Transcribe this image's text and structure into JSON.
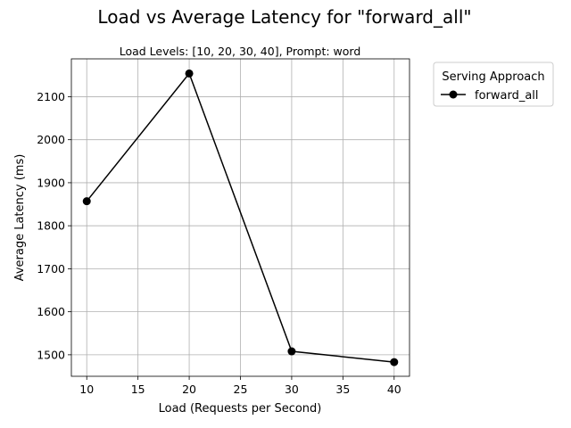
{
  "chart_data": {
    "type": "line",
    "title": "Load vs Average Latency for \"forward_all\"",
    "subtitle": "Load Levels: [10, 20, 30, 40], Prompt: word",
    "xlabel": "Load (Requests per Second)",
    "ylabel": "Average Latency (ms)",
    "x": [
      10,
      20,
      30,
      40
    ],
    "series": [
      {
        "name": "forward_all",
        "values": [
          1857,
          2154,
          1508,
          1483
        ],
        "color": "#000000",
        "marker": "circle"
      }
    ],
    "xlim": [
      8.5,
      41.5
    ],
    "ylim": [
      1450,
      2188
    ],
    "xticks": [
      10,
      15,
      20,
      25,
      30,
      35,
      40
    ],
    "yticks": [
      1500,
      1600,
      1700,
      1800,
      1900,
      2000,
      2100
    ],
    "grid": true,
    "legend": {
      "title": "Serving Approach",
      "placement": "outside-top-right"
    }
  }
}
